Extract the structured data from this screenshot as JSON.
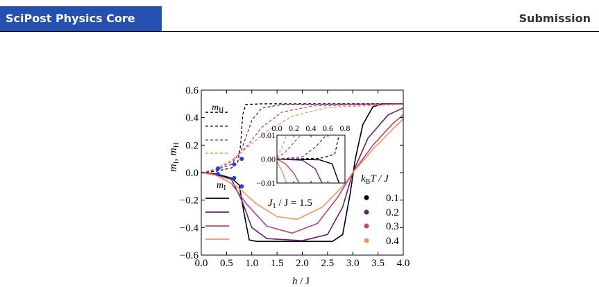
{
  "header": {
    "journal": "SciPost Physics Core",
    "status": "Submission"
  },
  "chart_data": {
    "type": "line",
    "x_range": [
      0,
      4
    ],
    "y_range": [
      -0.6,
      0.6
    ],
    "x_ticks": [
      "0.0",
      "0.5",
      "1.0",
      "1.5",
      "2.0",
      "2.5",
      "3.0",
      "3.5",
      "4.0"
    ],
    "y_ticks": [
      "0.6",
      "0.4",
      "0.2",
      "0.0",
      "−0.2",
      "−0.4",
      "−0.6"
    ],
    "xlabel": {
      "main": "h",
      "rest": " / J"
    },
    "ylabel": {
      "a": "m",
      "a_sub": "I",
      "sep": ", ",
      "b": "m",
      "b_sub": "H"
    },
    "legend_H": {
      "m": "m",
      "sub": "H"
    },
    "legend_I": {
      "m": "m",
      "sub": "I"
    },
    "legend_T": {
      "k": "k",
      "k_sub": "B",
      "rest": "T / J"
    },
    "annotation": {
      "J": "J",
      "sub": "1",
      "rest": " / J = 1.5"
    },
    "temperatures": [
      {
        "label": "0.1",
        "color": "#000000"
      },
      {
        "label": "0.2",
        "color": "#6a1c81"
      },
      {
        "label": "0.3",
        "color": "#c93f6e"
      },
      {
        "label": "0.4",
        "color": "#f2955d"
      }
    ],
    "series_mH": [
      [
        [
          0,
          0
        ],
        [
          0.3,
          0.01
        ],
        [
          0.6,
          0.035
        ],
        [
          0.72,
          0.07
        ],
        [
          0.78,
          0.2
        ],
        [
          0.82,
          0.42
        ],
        [
          0.88,
          0.495
        ],
        [
          1.2,
          0.5
        ],
        [
          4,
          0.5
        ]
      ],
      [
        [
          0,
          0
        ],
        [
          0.3,
          0.02
        ],
        [
          0.6,
          0.06
        ],
        [
          0.8,
          0.17
        ],
        [
          1.0,
          0.38
        ],
        [
          1.2,
          0.47
        ],
        [
          1.6,
          0.495
        ],
        [
          4,
          0.5
        ]
      ],
      [
        [
          0,
          0
        ],
        [
          0.3,
          0.025
        ],
        [
          0.6,
          0.08
        ],
        [
          0.9,
          0.19
        ],
        [
          1.2,
          0.33
        ],
        [
          1.6,
          0.44
        ],
        [
          2.2,
          0.485
        ],
        [
          4,
          0.5
        ]
      ],
      [
        [
          0,
          0
        ],
        [
          0.3,
          0.03
        ],
        [
          0.6,
          0.09
        ],
        [
          0.9,
          0.18
        ],
        [
          1.3,
          0.3
        ],
        [
          1.8,
          0.41
        ],
        [
          2.5,
          0.475
        ],
        [
          4,
          0.495
        ]
      ]
    ],
    "series_mI": [
      [
        [
          0,
          0
        ],
        [
          0.3,
          -0.01
        ],
        [
          0.6,
          -0.04
        ],
        [
          0.75,
          -0.09
        ],
        [
          0.85,
          -0.3
        ],
        [
          0.95,
          -0.49
        ],
        [
          1.1,
          -0.5
        ],
        [
          2.6,
          -0.5
        ],
        [
          2.8,
          -0.45
        ],
        [
          2.95,
          -0.15
        ],
        [
          3.05,
          0.1
        ],
        [
          3.2,
          0.35
        ],
        [
          3.4,
          0.48
        ],
        [
          3.6,
          0.5
        ],
        [
          4,
          0.5
        ]
      ],
      [
        [
          0,
          0
        ],
        [
          0.3,
          -0.015
        ],
        [
          0.6,
          -0.05
        ],
        [
          0.8,
          -0.2
        ],
        [
          1.0,
          -0.4
        ],
        [
          1.3,
          -0.48
        ],
        [
          2.0,
          -0.495
        ],
        [
          2.5,
          -0.45
        ],
        [
          2.8,
          -0.25
        ],
        [
          3.0,
          0
        ],
        [
          3.3,
          0.25
        ],
        [
          3.7,
          0.42
        ],
        [
          4,
          0.47
        ]
      ],
      [
        [
          0,
          0
        ],
        [
          0.3,
          -0.02
        ],
        [
          0.6,
          -0.08
        ],
        [
          0.9,
          -0.23
        ],
        [
          1.3,
          -0.39
        ],
        [
          1.8,
          -0.44
        ],
        [
          2.3,
          -0.37
        ],
        [
          2.7,
          -0.18
        ],
        [
          3.0,
          0
        ],
        [
          3.4,
          0.2
        ],
        [
          3.8,
          0.36
        ],
        [
          4,
          0.42
        ]
      ],
      [
        [
          0,
          0
        ],
        [
          0.3,
          -0.02
        ],
        [
          0.7,
          -0.1
        ],
        [
          1.1,
          -0.23
        ],
        [
          1.5,
          -0.32
        ],
        [
          1.9,
          -0.34
        ],
        [
          2.4,
          -0.25
        ],
        [
          2.8,
          -0.1
        ],
        [
          3.0,
          0
        ],
        [
          3.4,
          0.17
        ],
        [
          3.8,
          0.32
        ],
        [
          4,
          0.39
        ]
      ]
    ],
    "markers": [
      [
        0.33,
        0.03
      ],
      [
        0.65,
        0.06
      ],
      [
        0.8,
        0.1
      ],
      [
        0.33,
        -0.01
      ],
      [
        0.65,
        -0.04
      ],
      [
        0.8,
        -0.1
      ]
    ],
    "marker_color": "#1f3cf0",
    "inset": {
      "x_range": [
        0,
        0.8
      ],
      "y_range": [
        -0.01,
        0.01
      ],
      "x_ticks": [
        "0.0",
        "0.2",
        "0.4",
        "0.6",
        "0.8"
      ],
      "y_ticks": [
        "0.01",
        "0.00",
        "−0.01"
      ],
      "series_mH": [
        [
          [
            0,
            0
          ],
          [
            0.5,
            0.0003
          ],
          [
            0.68,
            0.002
          ],
          [
            0.73,
            0.01
          ]
        ],
        [
          [
            0,
            0
          ],
          [
            0.3,
            0.001
          ],
          [
            0.45,
            0.005
          ],
          [
            0.58,
            0.01
          ]
        ],
        [
          [
            0,
            0.0005
          ],
          [
            0.1,
            0.003
          ],
          [
            0.2,
            0.007
          ],
          [
            0.28,
            0.01
          ]
        ],
        [
          [
            0,
            0.001
          ],
          [
            0.06,
            0.005
          ],
          [
            0.11,
            0.01
          ]
        ]
      ],
      "series_mI": [
        [
          [
            0,
            0
          ],
          [
            0.5,
            -0.0003
          ],
          [
            0.65,
            -0.002
          ],
          [
            0.73,
            -0.01
          ]
        ],
        [
          [
            0,
            0
          ],
          [
            0.3,
            -0.0005
          ],
          [
            0.45,
            -0.004
          ],
          [
            0.53,
            -0.01
          ]
        ],
        [
          [
            0,
            0
          ],
          [
            0.1,
            -0.002
          ],
          [
            0.2,
            -0.006
          ],
          [
            0.26,
            -0.01
          ]
        ],
        [
          [
            0,
            -0.001
          ],
          [
            0.06,
            -0.005
          ],
          [
            0.11,
            -0.01
          ]
        ]
      ]
    }
  }
}
